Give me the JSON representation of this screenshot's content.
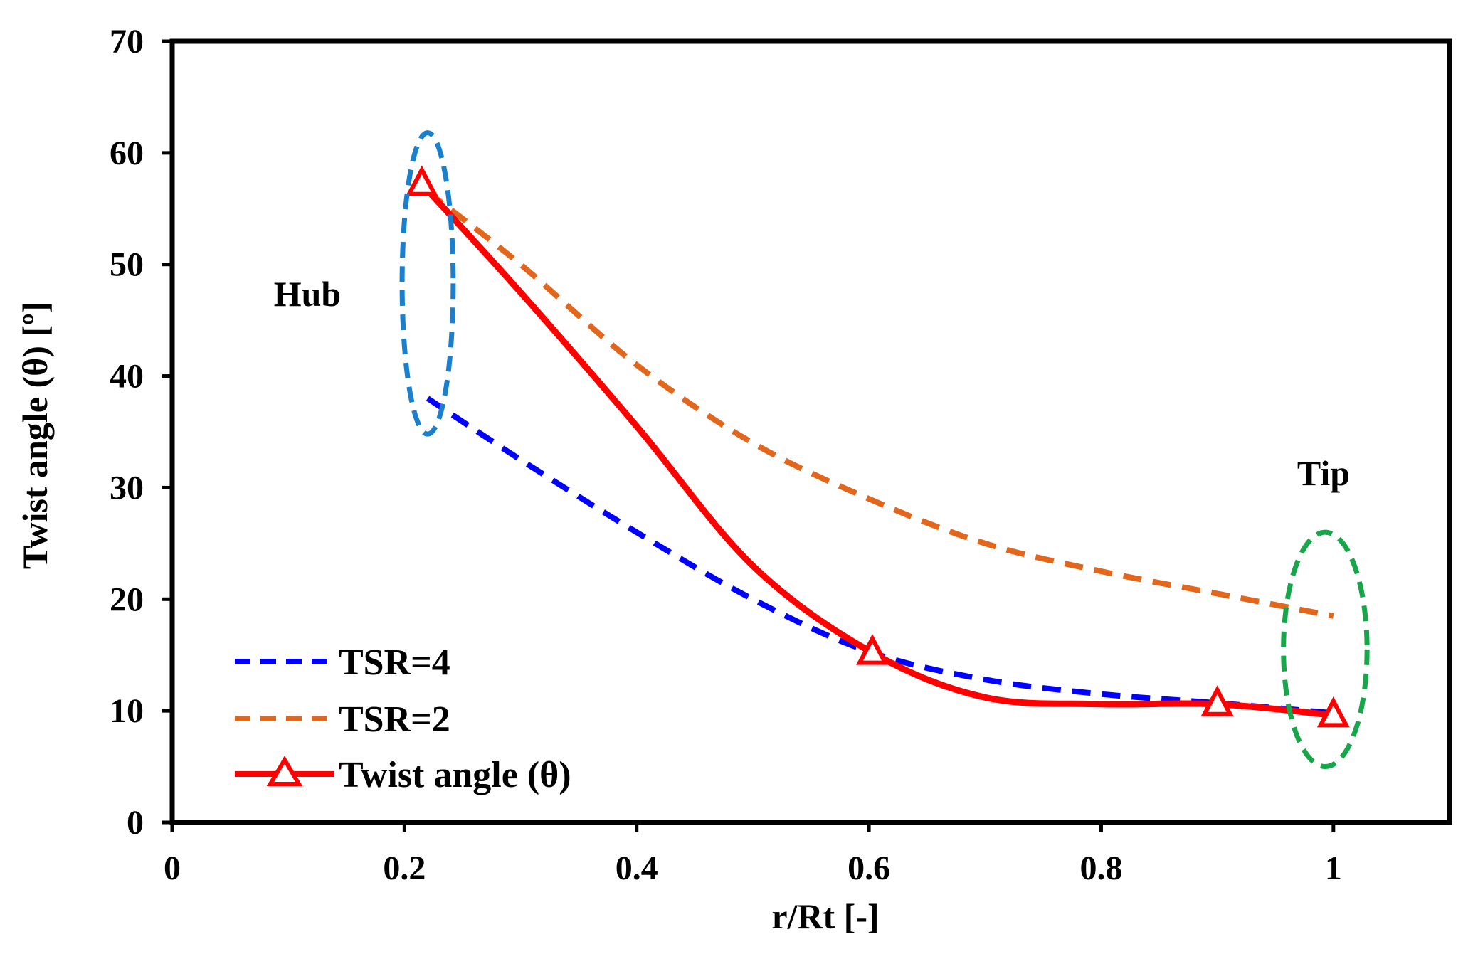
{
  "chart_data": {
    "type": "line",
    "title": "",
    "xlabel": "r/Rt [-]",
    "ylabel": "Twist angle (θ) [º]",
    "xlim": [
      0,
      1.1
    ],
    "ylim": [
      0,
      70
    ],
    "x_ticks": [
      0,
      0.2,
      0.4,
      0.6,
      0.8,
      1
    ],
    "x_tick_labels": [
      "0",
      "0.2",
      "0.4",
      "0.6",
      "0.8",
      "1"
    ],
    "y_ticks": [
      0,
      10,
      20,
      30,
      40,
      50,
      60,
      70
    ],
    "y_tick_labels": [
      "0",
      "10",
      "20",
      "30",
      "40",
      "50",
      "60",
      "70"
    ],
    "grid": false,
    "legend_position": "bottom-left",
    "series": [
      {
        "name": "TSR=4",
        "color": "#0000ff",
        "style": "dashed",
        "marker": "none",
        "x": [
          0.22,
          0.3,
          0.4,
          0.5,
          0.6,
          0.7,
          0.8,
          0.9,
          1.0
        ],
        "y": [
          38,
          32.5,
          26,
          20,
          15.3,
          12.8,
          11.5,
          10.7,
          9.8
        ]
      },
      {
        "name": "TSR=2",
        "color": "#e2671d",
        "style": "dashed",
        "marker": "none",
        "x": [
          0.22,
          0.3,
          0.4,
          0.5,
          0.6,
          0.7,
          0.8,
          0.9,
          1.0
        ],
        "y": [
          56.5,
          50,
          41,
          34,
          29,
          25,
          22.5,
          20.5,
          18.5
        ]
      },
      {
        "name": "Twist angle  (θ)",
        "color": "#ff0000",
        "style": "solid",
        "marker": "triangle",
        "x": [
          0.215,
          0.3,
          0.4,
          0.5,
          0.603,
          0.7,
          0.8,
          0.9,
          1.0
        ],
        "y": [
          57.2,
          47.5,
          35.5,
          23,
          15.2,
          11.2,
          10.6,
          10.6,
          9.6
        ],
        "marker_x": [
          0.215,
          0.603,
          0.9,
          1.0
        ],
        "marker_y": [
          57.2,
          15.2,
          10.6,
          9.6
        ]
      }
    ],
    "annotations": [
      {
        "text": "Hub",
        "ellipse_center": [
          0.22,
          48.3
        ],
        "ellipse_rx": 0.022,
        "ellipse_ry": 13.5,
        "color": "#1a7fcd"
      },
      {
        "text": "Tip",
        "ellipse_center": [
          0.993,
          15.5
        ],
        "ellipse_rx": 0.036,
        "ellipse_ry": 10.5,
        "color": "#19a64a"
      }
    ]
  }
}
